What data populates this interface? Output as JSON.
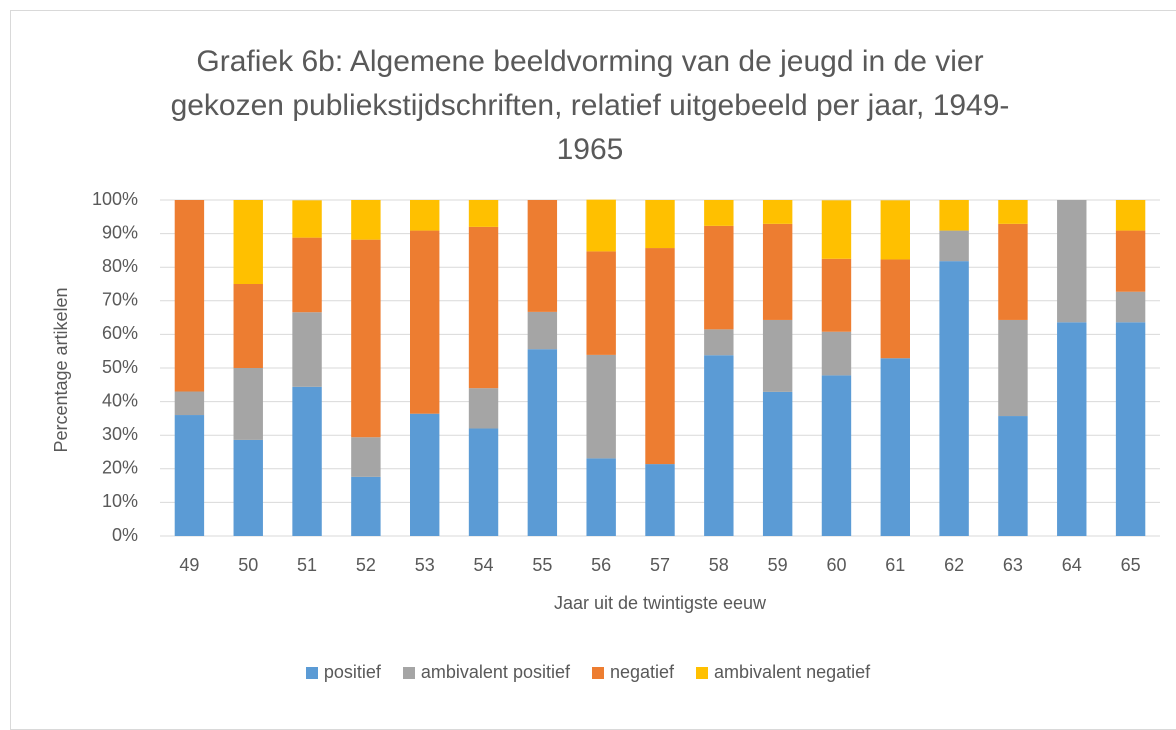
{
  "chart_data": {
    "type": "stacked_bar",
    "title": "Grafiek 6b: Algemene beeldvorming van de jeugd in de vier gekozen publiekstijdschriften, relatief uitgebeeld per jaar, 1949-1965",
    "x_label": "Jaar uit de twintigste eeuw",
    "y_label": "Percentage artikelen",
    "categories": [
      "49",
      "50",
      "51",
      "52",
      "53",
      "54",
      "55",
      "56",
      "57",
      "58",
      "59",
      "60",
      "61",
      "62",
      "63",
      "64",
      "65"
    ],
    "series": [
      {
        "name": "positief",
        "color": "#5b9bd5",
        "values": [
          36,
          28.6,
          44.4,
          17.6,
          36.4,
          32,
          55.6,
          23.1,
          21.4,
          53.8,
          42.9,
          47.8,
          52.9,
          81.8,
          35.7,
          63.6,
          63.6
        ]
      },
      {
        "name": "ambivalent positief",
        "color": "#a5a5a5",
        "values": [
          7,
          21.4,
          22.2,
          11.8,
          0,
          12,
          11.1,
          30.8,
          0,
          7.7,
          21.4,
          13,
          0,
          9.1,
          28.6,
          36.4,
          9.1
        ]
      },
      {
        "name": "negatief",
        "color": "#ed7d31",
        "values": [
          57,
          25,
          22.2,
          58.8,
          54.5,
          48,
          33.3,
          30.8,
          64.3,
          30.8,
          28.6,
          21.7,
          29.4,
          0,
          28.6,
          0,
          18.2
        ]
      },
      {
        "name": "ambivalent negatief",
        "color": "#ffc000",
        "values": [
          0,
          25,
          11.1,
          11.8,
          9.1,
          8,
          0,
          15.4,
          14.3,
          7.7,
          7.1,
          17.4,
          17.6,
          9.1,
          7.1,
          0,
          9.1
        ]
      }
    ],
    "ylim": [
      0,
      100
    ],
    "yticks": [
      {
        "value": 0,
        "label": "0%"
      },
      {
        "value": 10,
        "label": "10%"
      },
      {
        "value": 20,
        "label": "20%"
      },
      {
        "value": 30,
        "label": "30%"
      },
      {
        "value": 40,
        "label": "40%"
      },
      {
        "value": 50,
        "label": "50%"
      },
      {
        "value": 60,
        "label": "60%"
      },
      {
        "value": 70,
        "label": "70%"
      },
      {
        "value": 80,
        "label": "80%"
      },
      {
        "value": 90,
        "label": "90%"
      },
      {
        "value": 100,
        "label": "100%"
      }
    ],
    "grid": true,
    "legend": "bottom"
  }
}
